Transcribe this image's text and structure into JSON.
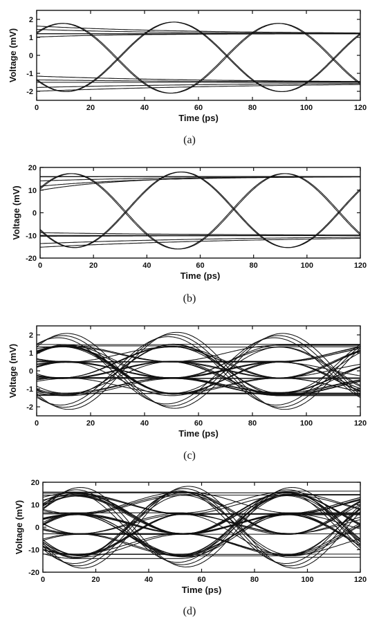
{
  "chart_data": [
    {
      "type": "line",
      "panel": "(a)",
      "xlabel": "Time (ps)",
      "ylabel": "Voltage (mV)",
      "xlim": [
        0,
        120
      ],
      "ylim": [
        -2.5,
        2.5
      ],
      "xticks": [
        0,
        20,
        40,
        60,
        80,
        100,
        120
      ],
      "yticks": [
        -2,
        -1,
        0,
        1,
        2
      ],
      "grid": false,
      "eye": {
        "bit_period_ps": 40,
        "crossing_ps": [
          10,
          50,
          90
        ],
        "high_mV": 1.85,
        "low_mV": -2.1,
        "upper_rail_mV": 1.2,
        "lower_rail_mV": -1.5,
        "traces": 12
      }
    },
    {
      "type": "line",
      "panel": "(b)",
      "xlabel": "Time (ps)",
      "ylabel": "Voltage (mV)",
      "xlim": [
        0,
        120
      ],
      "ylim": [
        -20,
        20
      ],
      "xticks": [
        0,
        20,
        40,
        60,
        80,
        100,
        120
      ],
      "yticks": [
        -20,
        -10,
        0,
        10,
        20
      ],
      "grid": false,
      "eye": {
        "bit_period_ps": 40,
        "crossing_ps": [
          12,
          52,
          92
        ],
        "high_mV": 18,
        "low_mV": -16,
        "upper_rail_mV": 16,
        "lower_rail_mV": -10,
        "traces": 12
      }
    },
    {
      "type": "line",
      "panel": "(c)",
      "xlabel": "Time (ps)",
      "ylabel": "Voltage (mV)",
      "xlim": [
        0,
        120
      ],
      "ylim": [
        -2.5,
        2.5
      ],
      "xticks": [
        0,
        20,
        40,
        60,
        80,
        100,
        120
      ],
      "yticks": [
        -2,
        -1,
        0,
        1,
        2
      ],
      "grid": false,
      "eye": {
        "bit_period_ps": 40,
        "crossing_ps": [
          10,
          50,
          90
        ],
        "levels_mV": [
          -1.3,
          -0.4,
          0.5,
          1.4
        ],
        "swing_mV": 2.0,
        "traces": 40
      }
    },
    {
      "type": "line",
      "panel": "(d)",
      "xlabel": "Time (ps)",
      "ylabel": "Voltage (mV)",
      "xlim": [
        0,
        120
      ],
      "ylim": [
        -20,
        20
      ],
      "xticks": [
        0,
        20,
        40,
        60,
        80,
        100,
        120
      ],
      "yticks": [
        -20,
        -10,
        0,
        10,
        20
      ],
      "grid": false,
      "eye": {
        "bit_period_ps": 40,
        "crossing_ps": [
          13,
          53,
          93
        ],
        "levels_mV": [
          -13,
          -3,
          6,
          15
        ],
        "swing_mV": 17,
        "traces": 44
      }
    }
  ]
}
